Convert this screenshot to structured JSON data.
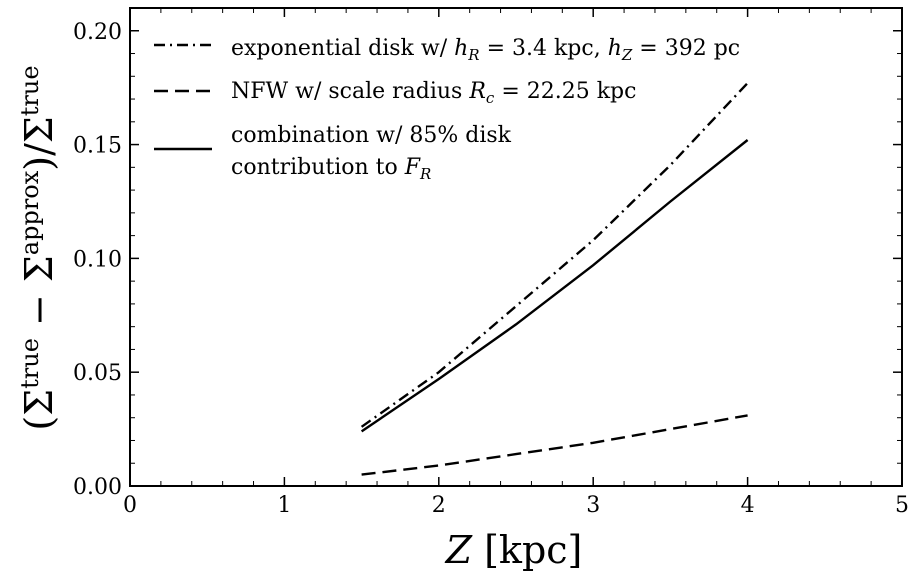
{
  "chart_data": {
    "type": "line",
    "xlabel": "Z [kpc]",
    "ylabel": "(Σtrue − Σapprox)/Σtrue",
    "xlim": [
      0,
      5
    ],
    "ylim": [
      0,
      0.21
    ],
    "x_ticks": [
      "0",
      "1",
      "2",
      "3",
      "4",
      "5"
    ],
    "y_ticks": [
      "0.00",
      "0.05",
      "0.10",
      "0.15",
      "0.20"
    ],
    "grid": false,
    "legend_position": "top-left",
    "series": [
      {
        "name": "exponential disk w/ hR = 3.4 kpc, hZ = 392 pc",
        "style": "dashdot",
        "x": [
          1.5,
          2.0,
          2.5,
          3.0,
          3.5,
          4.0
        ],
        "y": [
          0.026,
          0.05,
          0.079,
          0.108,
          0.141,
          0.177
        ]
      },
      {
        "name": "NFW w/ scale radius Rc = 22.25 kpc",
        "style": "dashed",
        "x": [
          1.5,
          2.0,
          2.5,
          3.0,
          3.5,
          4.0
        ],
        "y": [
          0.005,
          0.009,
          0.014,
          0.019,
          0.025,
          0.031
        ]
      },
      {
        "name": "combination w/ 85% disk contribution to FR",
        "style": "solid",
        "x": [
          1.5,
          2.0,
          2.5,
          3.0,
          3.5,
          4.0
        ],
        "y": [
          0.024,
          0.047,
          0.071,
          0.097,
          0.125,
          0.152
        ]
      }
    ],
    "colors": {
      "lines": "#000000",
      "background": "#ffffff"
    }
  }
}
